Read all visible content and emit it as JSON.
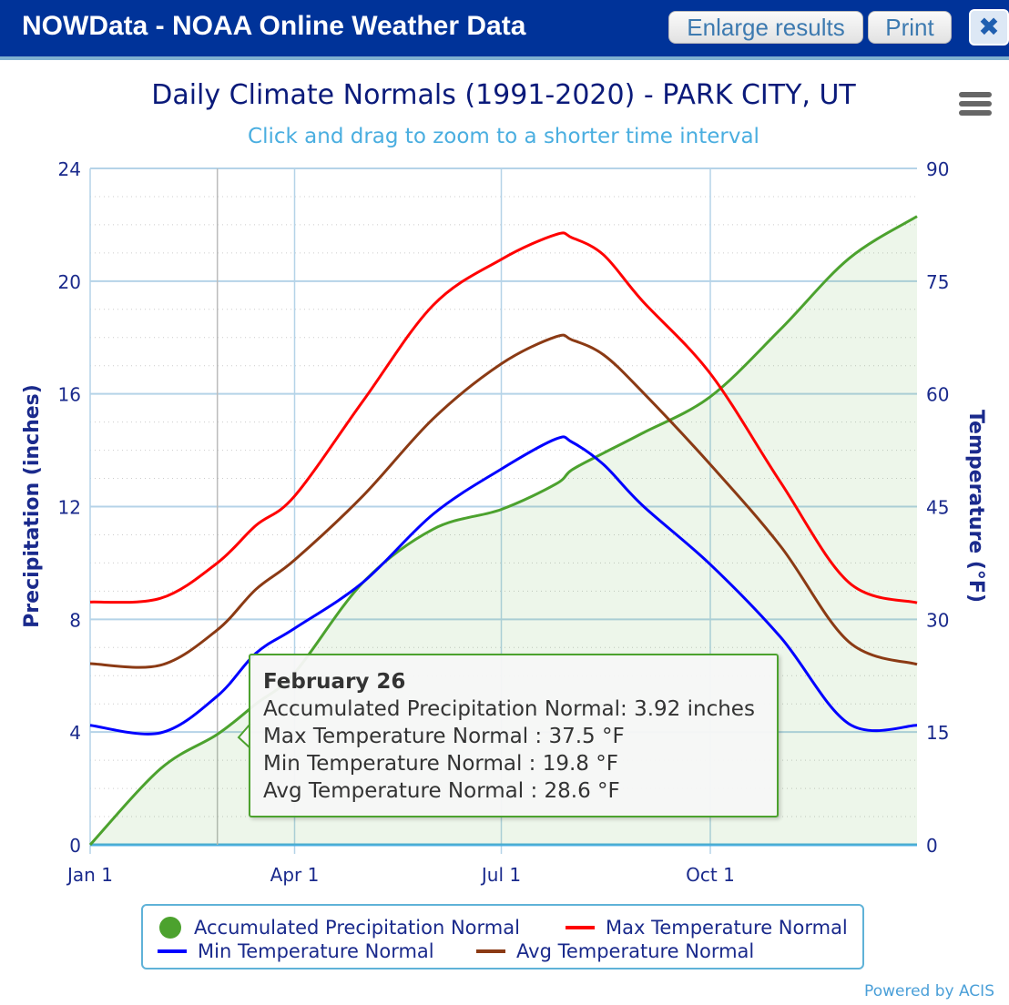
{
  "header": {
    "title": "NOWData - NOAA Online Weather Data",
    "enlarge_label": "Enlarge results",
    "print_label": "Print",
    "close_icon": "close-icon"
  },
  "chart_data": {
    "type": "line",
    "title": "Daily Climate Normals (1991-2020) - PARK CITY, UT",
    "subtitle": "Click and drag to zoom to a shorter time interval",
    "ylabel": "Precipitation (inches)",
    "y2label": "Temperature (°F)",
    "ylim": [
      0,
      24
    ],
    "y2lim": [
      0,
      90
    ],
    "yticks": [
      "0",
      "4",
      "8",
      "12",
      "16",
      "20",
      "24"
    ],
    "y2ticks": [
      "0",
      "15",
      "30",
      "45",
      "60",
      "75",
      "90"
    ],
    "xticks": [
      {
        "label": "Jan 1",
        "day": 1
      },
      {
        "label": "Apr 1",
        "day": 91
      },
      {
        "label": "Jul 1",
        "day": 182
      },
      {
        "label": "Oct 1",
        "day": 274
      }
    ],
    "x_days": [
      1,
      32,
      57,
      74,
      91,
      121,
      152,
      182,
      206,
      213,
      227,
      244,
      274,
      305,
      335,
      365
    ],
    "series": [
      {
        "name": "Accumulated Precipitation Normal",
        "axis": "left",
        "color": "#4ca22e",
        "area": true,
        "values": [
          0,
          2.7,
          3.92,
          5.0,
          6.1,
          9.3,
          11.2,
          11.9,
          12.8,
          13.3,
          13.9,
          14.6,
          15.9,
          18.3,
          20.8,
          22.3
        ]
      },
      {
        "name": "Max Temperature Normal",
        "axis": "right",
        "color": "#ff0000",
        "values": [
          32.3,
          32.8,
          37.5,
          42.5,
          46.4,
          59,
          71.8,
          77.9,
          81.2,
          80.8,
          78.5,
          72.4,
          62.7,
          48.2,
          34.9,
          32.2
        ]
      },
      {
        "name": "Min Temperature Normal",
        "axis": "right",
        "color": "#0000ff",
        "values": [
          15.9,
          14.9,
          19.8,
          25.5,
          28.8,
          34.9,
          44,
          50,
          54,
          53.6,
          50.6,
          45.2,
          37.3,
          27.6,
          16.1,
          15.9
        ]
      },
      {
        "name": "Avg Temperature Normal",
        "axis": "right",
        "color": "#8b3a14",
        "values": [
          24.1,
          23.9,
          28.6,
          34,
          37.9,
          46.4,
          56.7,
          64,
          67.6,
          67.2,
          65.2,
          60.3,
          50.6,
          39.7,
          27,
          24
        ]
      }
    ],
    "crosshair_day": 57,
    "tooltip": {
      "date": "February 26",
      "lines": [
        "Accumulated Precipitation Normal: 3.92 inches",
        "Max Temperature Normal : 37.5 °F",
        "Min Temperature Normal : 19.8 °F",
        "Avg Temperature Normal : 28.6 °F"
      ]
    },
    "legend_placement": "bottom",
    "grid": true
  },
  "credit": "Powered by ACIS"
}
